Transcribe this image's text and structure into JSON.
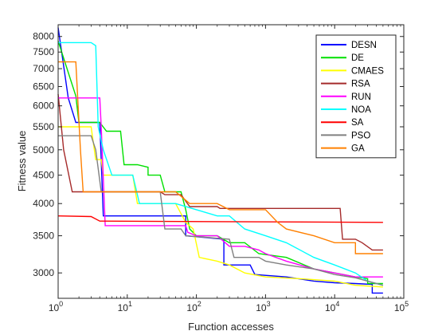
{
  "chart_data": {
    "type": "line",
    "title": "",
    "xlabel": "Function accesses",
    "ylabel": "Fitness value",
    "xscale": "log",
    "yscale": "log",
    "xlim": [
      1,
      100000
    ],
    "ylim": [
      2700,
      8400
    ],
    "x_ticks": [
      1,
      10,
      100,
      1000,
      10000,
      100000
    ],
    "x_tick_labels": [
      {
        "base": "10",
        "exp": "0"
      },
      {
        "base": "10",
        "exp": "1"
      },
      {
        "base": "10",
        "exp": "2"
      },
      {
        "base": "10",
        "exp": "3"
      },
      {
        "base": "10",
        "exp": "4"
      },
      {
        "base": "10",
        "exp": "5"
      }
    ],
    "y_ticks": [
      3000,
      3500,
      4000,
      4500,
      5000,
      5500,
      6000,
      6500,
      7000,
      7500,
      8000
    ],
    "y_tick_labels": [
      "3000",
      "3500",
      "4000",
      "4500",
      "5000",
      "5500",
      "6000",
      "6500",
      "7000",
      "7500",
      "8000"
    ],
    "grid": false,
    "legend_position": "top-right",
    "series": [
      {
        "name": "DESN",
        "color": "#0000ff",
        "points": [
          [
            1,
            8300
          ],
          [
            1.4,
            6200
          ],
          [
            1.8,
            5600
          ],
          [
            4,
            5600
          ],
          [
            4.5,
            3800
          ],
          [
            70,
            3800
          ],
          [
            70,
            3500
          ],
          [
            250,
            3450
          ],
          [
            250,
            3100
          ],
          [
            600,
            3100
          ],
          [
            700,
            2980
          ],
          [
            2000,
            2950
          ],
          [
            5000,
            2900
          ],
          [
            10000,
            2880
          ],
          [
            20000,
            2870
          ],
          [
            35000,
            2860
          ],
          [
            35000,
            2760
          ],
          [
            50000,
            2760
          ]
        ]
      },
      {
        "name": "DE",
        "color": "#00e000",
        "points": [
          [
            1,
            7850
          ],
          [
            1.8,
            6250
          ],
          [
            2,
            5600
          ],
          [
            4,
            5600
          ],
          [
            5,
            5400
          ],
          [
            8,
            5400
          ],
          [
            9,
            4700
          ],
          [
            14,
            4700
          ],
          [
            20,
            4650
          ],
          [
            20,
            4500
          ],
          [
            30,
            4500
          ],
          [
            35,
            4200
          ],
          [
            60,
            4200
          ],
          [
            70,
            3900
          ],
          [
            80,
            3600
          ],
          [
            100,
            3500
          ],
          [
            200,
            3500
          ],
          [
            300,
            3400
          ],
          [
            500,
            3400
          ],
          [
            800,
            3250
          ],
          [
            2000,
            3200
          ],
          [
            5000,
            3050
          ],
          [
            10000,
            3000
          ],
          [
            20000,
            2950
          ],
          [
            30000,
            2930
          ],
          [
            30000,
            2870
          ],
          [
            50000,
            2870
          ]
        ]
      },
      {
        "name": "CMAES",
        "color": "#ffff00",
        "points": [
          [
            1,
            5500
          ],
          [
            3,
            5500
          ],
          [
            3.5,
            4800
          ],
          [
            4.2,
            4800
          ],
          [
            4.5,
            4500
          ],
          [
            12,
            4500
          ],
          [
            14,
            4000
          ],
          [
            50,
            4000
          ],
          [
            70,
            3700
          ],
          [
            90,
            3600
          ],
          [
            110,
            3200
          ],
          [
            200,
            3150
          ],
          [
            300,
            3100
          ],
          [
            500,
            3000
          ],
          [
            1000,
            2950
          ],
          [
            3000,
            2930
          ],
          [
            10000,
            2900
          ],
          [
            20000,
            2850
          ],
          [
            50000,
            2830
          ]
        ]
      },
      {
        "name": "RSA",
        "color": "#a52a2a",
        "points": [
          [
            1,
            6300
          ],
          [
            1.2,
            5000
          ],
          [
            1.6,
            4200
          ],
          [
            30,
            4200
          ],
          [
            35,
            4150
          ],
          [
            60,
            4150
          ],
          [
            80,
            3950
          ],
          [
            200,
            3950
          ],
          [
            220,
            3920
          ],
          [
            12000,
            3920
          ],
          [
            13000,
            3450
          ],
          [
            20000,
            3450
          ],
          [
            25000,
            3400
          ],
          [
            35000,
            3300
          ],
          [
            50000,
            3300
          ]
        ]
      },
      {
        "name": "RUN",
        "color": "#ff00ff",
        "points": [
          [
            1,
            6200
          ],
          [
            4,
            6200
          ],
          [
            4.2,
            5500
          ],
          [
            4.8,
            3650
          ],
          [
            70,
            3650
          ],
          [
            75,
            3550
          ],
          [
            100,
            3500
          ],
          [
            200,
            3500
          ],
          [
            300,
            3350
          ],
          [
            500,
            3350
          ],
          [
            800,
            3300
          ],
          [
            1000,
            3250
          ],
          [
            2000,
            3150
          ],
          [
            5000,
            3050
          ],
          [
            10000,
            3000
          ],
          [
            20000,
            2950
          ],
          [
            50000,
            2950
          ]
        ]
      },
      {
        "name": "NOA",
        "color": "#00ffff",
        "points": [
          [
            1,
            7800
          ],
          [
            3,
            7800
          ],
          [
            3.5,
            7700
          ],
          [
            3.8,
            5500
          ],
          [
            4.5,
            5000
          ],
          [
            6,
            4500
          ],
          [
            12,
            4500
          ],
          [
            15,
            4000
          ],
          [
            50,
            4000
          ],
          [
            100,
            3900
          ],
          [
            200,
            3800
          ],
          [
            300,
            3800
          ],
          [
            500,
            3600
          ],
          [
            1000,
            3500
          ],
          [
            2000,
            3400
          ],
          [
            5000,
            3200
          ],
          [
            10000,
            3100
          ],
          [
            20000,
            3000
          ],
          [
            30000,
            2900
          ],
          [
            50000,
            2850
          ]
        ]
      },
      {
        "name": "SA",
        "color": "#ff0000",
        "points": [
          [
            1,
            3800
          ],
          [
            3,
            3790
          ],
          [
            4,
            3720
          ],
          [
            50000,
            3700
          ]
        ]
      },
      {
        "name": "PSO",
        "color": "#808080",
        "points": [
          [
            1,
            5300
          ],
          [
            3,
            5300
          ],
          [
            3.5,
            5000
          ],
          [
            4.2,
            4200
          ],
          [
            5,
            4200
          ],
          [
            30,
            4200
          ],
          [
            35,
            3600
          ],
          [
            60,
            3600
          ],
          [
            70,
            3500
          ],
          [
            300,
            3450
          ],
          [
            350,
            3200
          ],
          [
            800,
            3200
          ],
          [
            1000,
            3150
          ],
          [
            2000,
            3100
          ],
          [
            5000,
            3050
          ],
          [
            10000,
            2980
          ],
          [
            20000,
            2940
          ],
          [
            30000,
            2900
          ],
          [
            50000,
            2850
          ]
        ]
      },
      {
        "name": "GA",
        "color": "#ff8000",
        "points": [
          [
            1,
            7200
          ],
          [
            1.8,
            7200
          ],
          [
            2.1,
            5000
          ],
          [
            2.3,
            4200
          ],
          [
            50,
            4200
          ],
          [
            80,
            4000
          ],
          [
            200,
            4000
          ],
          [
            300,
            3900
          ],
          [
            1000,
            3900
          ],
          [
            1500,
            3700
          ],
          [
            2000,
            3600
          ],
          [
            5000,
            3500
          ],
          [
            10000,
            3400
          ],
          [
            20000,
            3400
          ],
          [
            20000,
            3250
          ],
          [
            50000,
            3250
          ]
        ]
      }
    ]
  }
}
